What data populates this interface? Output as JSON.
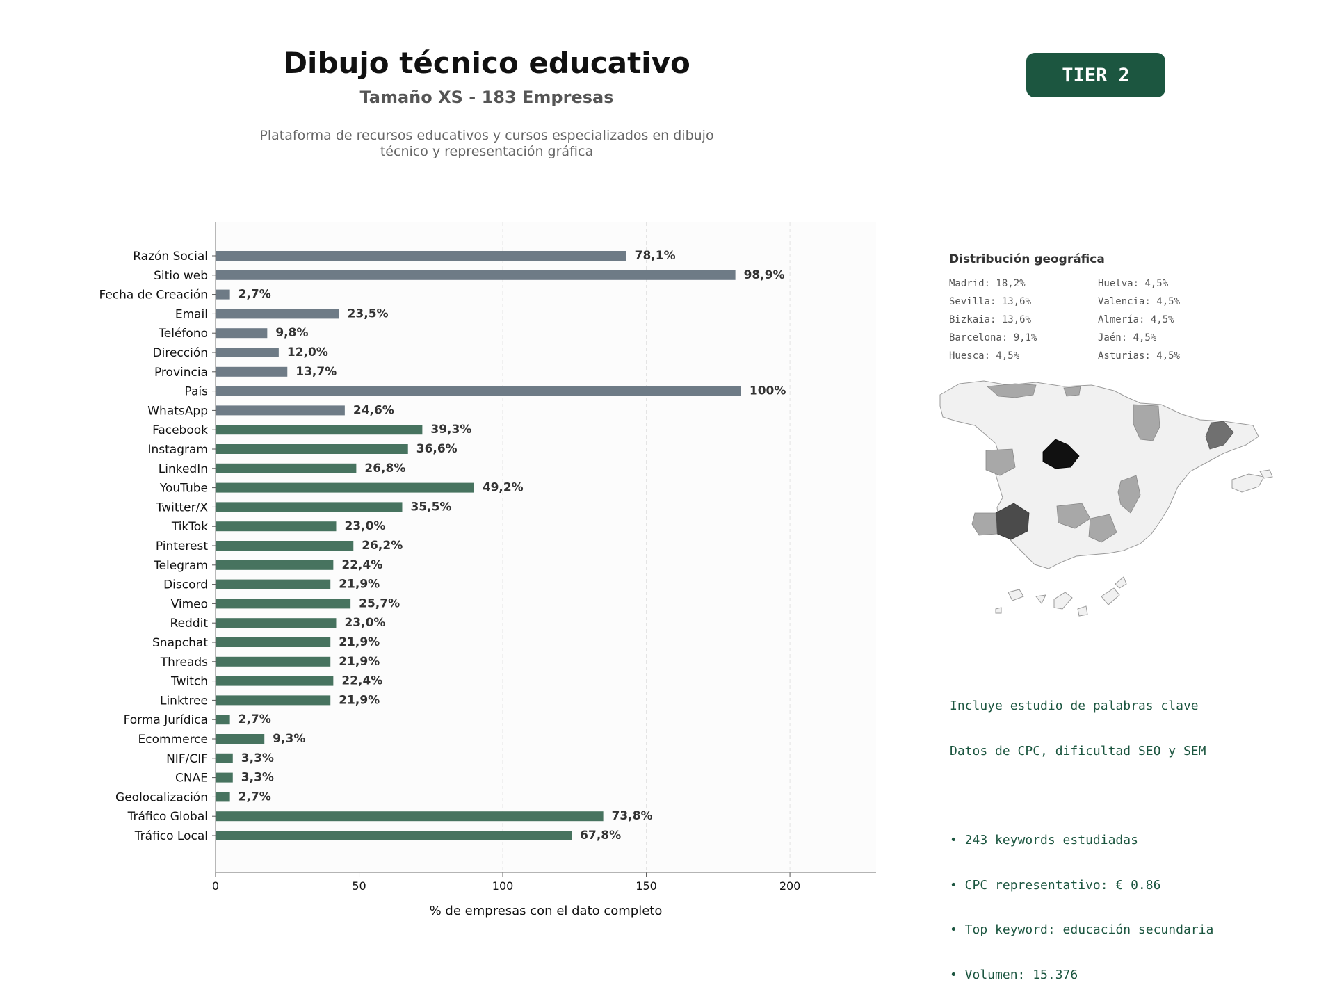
{
  "header": {
    "title": "Dibujo técnico educativo",
    "subtitle": "Tamaño XS - 183 Empresas",
    "description_line1": "Plataforma de recursos educativos y cursos especializados en dibujo",
    "description_line2": "técnico y representación gráfica",
    "tier_badge": "TIER 2"
  },
  "colors": {
    "tier_badge_bg": "#1c5640",
    "bar_basic": "#6e7b86",
    "bar_social": "#47735f",
    "keywords_text": "#1c5640"
  },
  "chart_data": {
    "type": "bar",
    "orientation": "horizontal",
    "xlabel": "% de empresas con el dato completo",
    "xlim": [
      0,
      230
    ],
    "xticks": [
      0,
      50,
      100,
      150,
      200
    ],
    "grid": "vertical dashed",
    "categories": [
      "Razón Social",
      "Sitio web",
      "Fecha de Creación",
      "Email",
      "Teléfono",
      "Dirección",
      "Provincia",
      "País",
      "WhatsApp",
      "Facebook",
      "Instagram",
      "LinkedIn",
      "YouTube",
      "Twitter/X",
      "TikTok",
      "Pinterest",
      "Telegram",
      "Discord",
      "Vimeo",
      "Reddit",
      "Snapchat",
      "Threads",
      "Twitch",
      "Linktree",
      "Forma Jurídica",
      "Ecommerce",
      "NIF/CIF",
      "CNAE",
      "Geolocalización",
      "Tráfico Global",
      "Tráfico Local"
    ],
    "values": [
      143,
      181,
      5,
      43,
      18,
      22,
      25,
      183,
      45,
      72,
      67,
      49,
      90,
      65,
      42,
      48,
      41,
      40,
      47,
      42,
      40,
      40,
      41,
      40,
      5,
      17,
      6,
      6,
      5,
      135,
      124
    ],
    "data_labels": [
      "78,1%",
      "98,9%",
      "2,7%",
      "23,5%",
      "9,8%",
      "12,0%",
      "13,7%",
      "100%",
      "24,6%",
      "39,3%",
      "36,6%",
      "26,8%",
      "49,2%",
      "35,5%",
      "23,0%",
      "26,2%",
      "22,4%",
      "21,9%",
      "25,7%",
      "23,0%",
      "21,9%",
      "21,9%",
      "22,4%",
      "21,9%",
      "2,7%",
      "9,3%",
      "3,3%",
      "3,3%",
      "2,7%",
      "73,8%",
      "67,8%"
    ],
    "groups": [
      "basic",
      "basic",
      "basic",
      "basic",
      "basic",
      "basic",
      "basic",
      "basic",
      "basic",
      "social",
      "social",
      "social",
      "social",
      "social",
      "social",
      "social",
      "social",
      "social",
      "social",
      "social",
      "social",
      "social",
      "social",
      "social",
      "social",
      "social",
      "social",
      "social",
      "social",
      "social",
      "social"
    ]
  },
  "geo": {
    "title": "Distribución geográfica",
    "items": [
      "Madrid: 18,2%",
      "Sevilla: 13,6%",
      "Bizkaia: 13,6%",
      "Barcelona: 9,1%",
      "Huesca: 4,5%",
      "Huelva: 4,5%",
      "Valencia: 4,5%",
      "Almería: 4,5%",
      "Jaén: 4,5%",
      "Asturias: 4,5%"
    ]
  },
  "keywords": {
    "line1": "Incluye estudio de palabras clave",
    "line2": "Datos de CPC, dificultad SEO y SEM",
    "bullet1": "• 243 keywords estudiadas",
    "bullet2": "• CPC representativo: € 0.86",
    "bullet3": "• Top keyword: educación secundaria",
    "bullet4": "• Volumen: 15.376"
  }
}
